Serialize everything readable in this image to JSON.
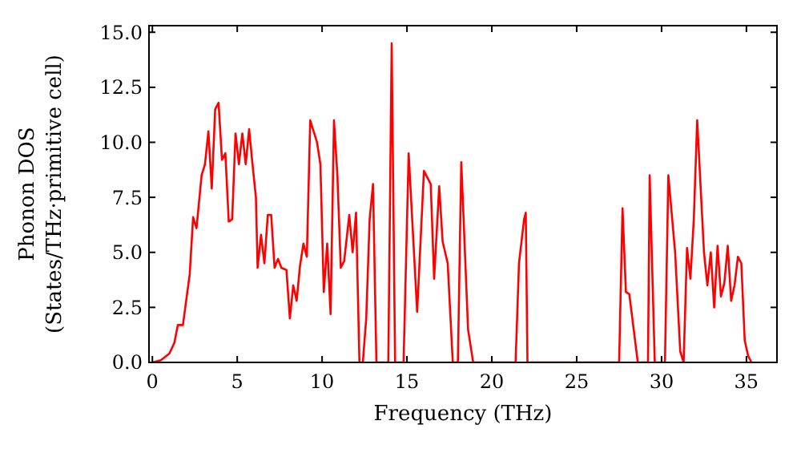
{
  "chart_data": {
    "type": "line",
    "xlabel": "Frequency (THz)",
    "ylabel": "Phonon DOS\n(States/THz·primitive cell)",
    "xlim": [
      -0.2,
      36.8
    ],
    "ylim": [
      0,
      15.3
    ],
    "xticks": [
      0,
      5,
      10,
      15,
      20,
      25,
      30,
      35
    ],
    "yticks": [
      {
        "value": 0,
        "label": "0.0"
      },
      {
        "value": 2.5,
        "label": "2.5"
      },
      {
        "value": 5,
        "label": "5.0"
      },
      {
        "value": 7.5,
        "label": "7.5"
      },
      {
        "value": 10,
        "label": "10.0"
      },
      {
        "value": 12.5,
        "label": "12.5"
      },
      {
        "value": 15,
        "label": "15.0"
      }
    ],
    "grid": false,
    "marker": "none",
    "line_style": "solid",
    "x": [
      0,
      0.5,
      1,
      1.3,
      1.5,
      1.8,
      2.2,
      2.4,
      2.6,
      2.9,
      3.1,
      3.3,
      3.5,
      3.7,
      3.9,
      4.1,
      4.3,
      4.5,
      4.7,
      4.9,
      5.1,
      5.3,
      5.5,
      5.7,
      5.9,
      6.1,
      6.2,
      6.4,
      6.6,
      6.8,
      7.0,
      7.2,
      7.4,
      7.6,
      7.9,
      8.1,
      8.3,
      8.5,
      8.7,
      8.9,
      9.1,
      9.3,
      9.7,
      9.9,
      10.1,
      10.3,
      10.5,
      10.7,
      10.9,
      11.1,
      11.3,
      11.6,
      11.8,
      12,
      12.2,
      12.4,
      12.6,
      12.8,
      13,
      13.2,
      13.9,
      14.1,
      14.3,
      14.8,
      15.1,
      15.6,
      16.0,
      16.4,
      16.6,
      16.9,
      17.1,
      17.4,
      17.7,
      18.0,
      18.2,
      18.6,
      18.9,
      21.4,
      21.6,
      21.9,
      22.0,
      22.1,
      27.5,
      27.7,
      27.9,
      28.1,
      28.6,
      29.2,
      29.3,
      29.6,
      30.2,
      30.4,
      30.8,
      31.1,
      31.3,
      31.5,
      31.7,
      31.9,
      32.1,
      32.5,
      32.7,
      32.9,
      33.1,
      33.3,
      33.5,
      33.7,
      33.9,
      34.1,
      34.3,
      34.5,
      34.7,
      34.9,
      35.1,
      35.3
    ],
    "series": [
      {
        "color": "#ff0000",
        "values": [
          0,
          0.1,
          0.4,
          0.9,
          1.7,
          1.7,
          4,
          6.6,
          6.1,
          8.5,
          9,
          10.5,
          7.9,
          11.5,
          11.8,
          9.2,
          9.5,
          6.4,
          6.5,
          10.4,
          9,
          10.4,
          9,
          10.6,
          9,
          7.5,
          4.3,
          5.8,
          4.5,
          6.7,
          6.7,
          4.3,
          4.7,
          4.3,
          4.2,
          2.0,
          3.5,
          2.8,
          4.4,
          5.4,
          4.8,
          11,
          10,
          9,
          3.2,
          5.4,
          2.2,
          11,
          8.5,
          4.3,
          4.6,
          6.7,
          5,
          6.8,
          0,
          0,
          2,
          6.5,
          8.1,
          0,
          0,
          14.5,
          0,
          0,
          9.5,
          2.3,
          8.7,
          8.1,
          3.8,
          8.0,
          5.5,
          4.5,
          0,
          0,
          9.1,
          1.5,
          0,
          0,
          4.5,
          6.5,
          6.8,
          0,
          0,
          7,
          3.2,
          3.1,
          0,
          0,
          8.5,
          0,
          0,
          8.5,
          5,
          0.5,
          0,
          5.2,
          3.8,
          6.5,
          11,
          5,
          3.5,
          5,
          2.5,
          5.3,
          3,
          3.6,
          5.3,
          2.8,
          3.5,
          4.8,
          4.5,
          1,
          0.3,
          0
        ]
      }
    ]
  }
}
